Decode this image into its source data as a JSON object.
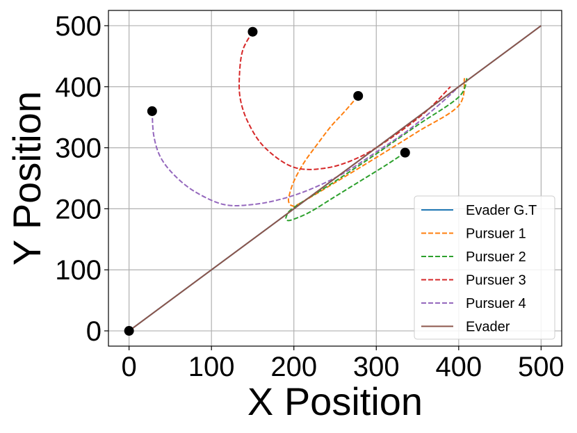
{
  "chart_data": {
    "type": "line",
    "title": "",
    "xlabel": "X Position",
    "ylabel": "Y Position",
    "xlim": [
      -25,
      525
    ],
    "ylim": [
      -25,
      525
    ],
    "xticks": [
      0,
      100,
      200,
      300,
      400,
      500
    ],
    "yticks": [
      0,
      100,
      200,
      300,
      400,
      500
    ],
    "grid": true,
    "legend_position": "lower-right",
    "series": [
      {
        "name": "Evader G.T",
        "color": "#1f77b4",
        "style": "solid",
        "x": [
          0,
          500
        ],
        "y": [
          0,
          500
        ]
      },
      {
        "name": "Pursuer 1",
        "color": "#ff7f0e",
        "style": "dashed",
        "x": [
          278,
          262,
          245,
          228,
          212,
          200,
          194,
          194,
          198,
          206,
          250,
          300,
          350,
          400,
          407
        ],
        "y": [
          385,
          360,
          335,
          305,
          275,
          245,
          220,
          210,
          205,
          208,
          243,
          284,
          326,
          369,
          414
        ]
      },
      {
        "name": "Pursuer 2",
        "color": "#2ca02c",
        "style": "dashed",
        "x": [
          335,
          310,
          280,
          250,
          220,
          200,
          192,
          191,
          200,
          250,
          300,
          350,
          400,
          410
        ],
        "y": [
          292,
          270,
          245,
          220,
          195,
          183,
          181,
          188,
          202,
          245,
          290,
          337,
          383,
          414
        ]
      },
      {
        "name": "Pursuer 3",
        "color": "#d62728",
        "style": "dashed",
        "x": [
          150,
          138,
          134,
          135,
          145,
          165,
          200,
          240,
          280,
          320,
          360,
          390
        ],
        "y": [
          490,
          460,
          420,
          380,
          340,
          300,
          268,
          267,
          285,
          318,
          359,
          400
        ]
      },
      {
        "name": "Pursuer 4",
        "color": "#9467bd",
        "style": "dashed",
        "x": [
          28,
          30,
          38,
          55,
          80,
          115,
          150,
          185,
          220,
          260,
          300,
          340,
          380,
          400
        ],
        "y": [
          360,
          320,
          285,
          255,
          228,
          207,
          207,
          216,
          232,
          258,
          293,
          330,
          375,
          400
        ]
      },
      {
        "name": "Evader",
        "color": "#8c564b",
        "style": "solid",
        "x": [
          0,
          500
        ],
        "y": [
          0,
          500
        ]
      }
    ],
    "markers": {
      "color": "#000000",
      "points": [
        {
          "x": 0,
          "y": 0
        },
        {
          "x": 150,
          "y": 490
        },
        {
          "x": 278,
          "y": 385
        },
        {
          "x": 28,
          "y": 360
        },
        {
          "x": 335,
          "y": 292
        }
      ]
    }
  }
}
